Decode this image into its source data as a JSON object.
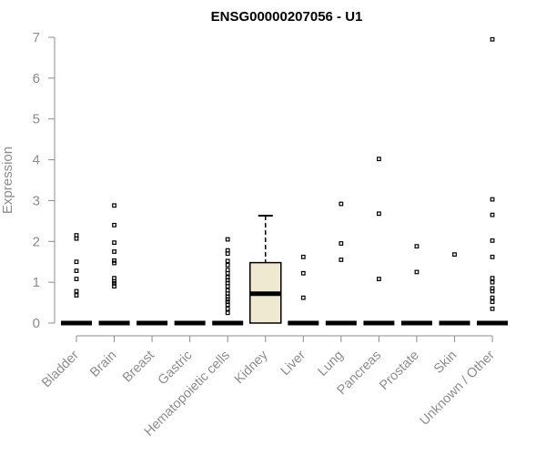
{
  "chart_data": {
    "type": "box",
    "title": "ENSG00000207056 - U1",
    "xlabel": "",
    "ylabel": "Expression",
    "ylim": [
      0,
      7
    ],
    "yticks": [
      0,
      1,
      2,
      3,
      4,
      5,
      6,
      7
    ],
    "grid": false,
    "box_fill": "#f0e9d2",
    "median_color": "#000000",
    "categories": [
      "Bladder",
      "Brain",
      "Breast",
      "Gastric",
      "Hematopoietic cells",
      "Kidney",
      "Liver",
      "Lung",
      "Pancreas",
      "Prostate",
      "Skin",
      "Unknown / Other"
    ],
    "boxes": [
      {
        "category": "Bladder",
        "q1": 0,
        "median": 0,
        "q3": 0,
        "whisker_low": 0,
        "whisker_high": 0,
        "outliers": [
          2.15,
          2.07,
          1.5,
          1.28,
          1.08,
          0.78,
          0.68
        ]
      },
      {
        "category": "Brain",
        "q1": 0,
        "median": 0,
        "q3": 0,
        "whisker_low": 0,
        "whisker_high": 0,
        "outliers": [
          2.88,
          2.4,
          1.97,
          1.75,
          1.53,
          1.47,
          1.1,
          1.02,
          0.97,
          0.9
        ]
      },
      {
        "category": "Breast",
        "q1": 0,
        "median": 0,
        "q3": 0,
        "whisker_low": 0,
        "whisker_high": 0,
        "outliers": []
      },
      {
        "category": "Gastric",
        "q1": 0,
        "median": 0,
        "q3": 0,
        "whisker_low": 0,
        "whisker_high": 0,
        "outliers": []
      },
      {
        "category": "Hematopoietic cells",
        "q1": 0,
        "median": 0,
        "q3": 0,
        "whisker_low": 0,
        "whisker_high": 0,
        "outliers": [
          2.05,
          1.78,
          1.7,
          1.52,
          1.42,
          1.3,
          1.22,
          1.12,
          1.05,
          0.98,
          0.9,
          0.8,
          0.72,
          0.65,
          0.58,
          0.52,
          0.45,
          0.35,
          0.25
        ]
      },
      {
        "category": "Kidney",
        "q1": 0,
        "median": 0.72,
        "q3": 1.48,
        "whisker_low": 0,
        "whisker_high": 2.63,
        "outliers": []
      },
      {
        "category": "Liver",
        "q1": 0,
        "median": 0,
        "q3": 0,
        "whisker_low": 0,
        "whisker_high": 0,
        "outliers": [
          1.62,
          1.22,
          0.62
        ]
      },
      {
        "category": "Lung",
        "q1": 0,
        "median": 0,
        "q3": 0,
        "whisker_low": 0,
        "whisker_high": 0,
        "outliers": [
          2.92,
          1.95,
          1.55
        ]
      },
      {
        "category": "Pancreas",
        "q1": 0,
        "median": 0,
        "q3": 0,
        "whisker_low": 0,
        "whisker_high": 0,
        "outliers": [
          4.02,
          2.68,
          1.08
        ]
      },
      {
        "category": "Prostate",
        "q1": 0,
        "median": 0,
        "q3": 0,
        "whisker_low": 0,
        "whisker_high": 0,
        "outliers": [
          1.88,
          1.25
        ]
      },
      {
        "category": "Skin",
        "q1": 0,
        "median": 0,
        "q3": 0,
        "whisker_low": 0,
        "whisker_high": 0,
        "outliers": [
          1.68
        ]
      },
      {
        "category": "Unknown / Other",
        "q1": 0,
        "median": 0,
        "q3": 0,
        "whisker_low": 0,
        "whisker_high": 0,
        "outliers": [
          6.95,
          3.03,
          2.65,
          2.02,
          1.62,
          1.1,
          1.0,
          0.85,
          0.78,
          0.62,
          0.52,
          0.35
        ]
      }
    ]
  }
}
